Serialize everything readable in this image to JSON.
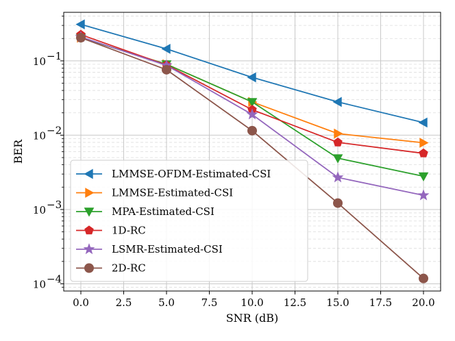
{
  "chart_data": {
    "type": "line",
    "title": "",
    "xlabel": "SNR (dB)",
    "ylabel": "BER",
    "xlim": [
      -1,
      21
    ],
    "ylim": [
      8e-05,
      0.45
    ],
    "yscale": "log",
    "grid": true,
    "legend_position": "lower-left",
    "x": [
      0,
      5,
      10,
      15,
      20
    ],
    "x_ticks": [
      "0.0",
      "2.5",
      "5.0",
      "7.5",
      "10.0",
      "12.5",
      "15.0",
      "17.5",
      "20.0"
    ],
    "x_tick_values": [
      0,
      2.5,
      5,
      7.5,
      10,
      12.5,
      15,
      17.5,
      20
    ],
    "y_ticks": [
      {
        "value": 0.1,
        "base": "10",
        "exp": "−1"
      },
      {
        "value": 0.01,
        "base": "10",
        "exp": "−2"
      },
      {
        "value": 0.001,
        "base": "10",
        "exp": "−3"
      },
      {
        "value": 0.0001,
        "base": "10",
        "exp": "−4"
      }
    ],
    "series": [
      {
        "name": "LMMSE-OFDM-Estimated-CSI",
        "color": "#1f77b4",
        "marker": "triangle-left",
        "values": [
          0.31,
          0.145,
          0.06,
          0.028,
          0.0148
        ]
      },
      {
        "name": "LMMSE-Estimated-CSI",
        "color": "#ff7f0e",
        "marker": "triangle-right",
        "values": [
          0.205,
          0.09,
          0.028,
          0.0105,
          0.0079
        ]
      },
      {
        "name": "MPA-Estimated-CSI",
        "color": "#2ca02c",
        "marker": "triangle-down",
        "values": [
          0.205,
          0.09,
          0.028,
          0.0049,
          0.0028
        ]
      },
      {
        "name": "1D-RC",
        "color": "#d62728",
        "marker": "pentagon",
        "values": [
          0.225,
          0.088,
          0.022,
          0.008,
          0.0057
        ]
      },
      {
        "name": "LSMR-Estimated-CSI",
        "color": "#9467bd",
        "marker": "star",
        "values": [
          0.21,
          0.087,
          0.019,
          0.0027,
          0.00155
        ]
      },
      {
        "name": "2D-RC",
        "color": "#8c564b",
        "marker": "circle",
        "values": [
          0.205,
          0.076,
          0.0115,
          0.00122,
          0.000118
        ]
      }
    ]
  }
}
